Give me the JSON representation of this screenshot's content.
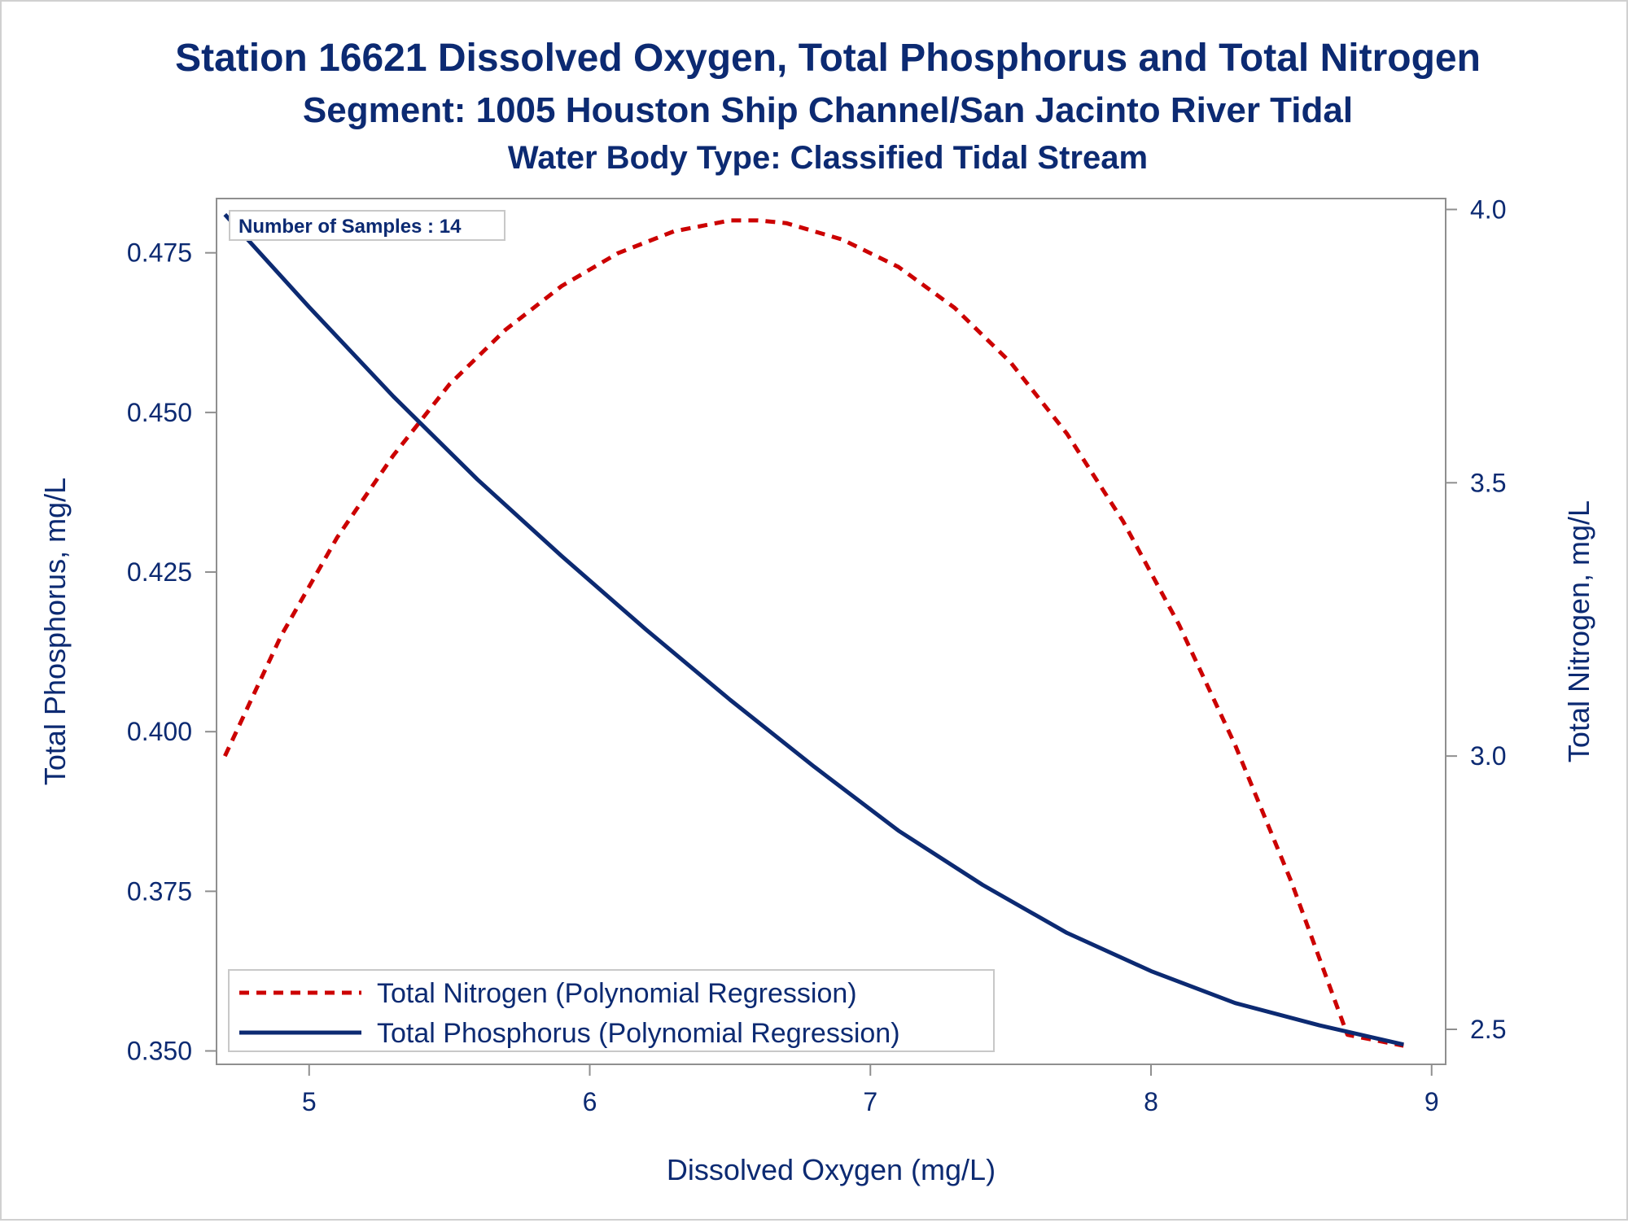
{
  "chart_data": {
    "type": "line",
    "title": "Station 16621  Dissolved Oxygen, Total Phosphorus and Total Nitrogen",
    "subtitle": "Segment: 1005  Houston Ship Channel/San Jacinto River Tidal",
    "subtitle2": "Water Body Type: Classified Tidal Stream",
    "annotation": "Number of Samples : 14",
    "xlabel": "Dissolved Oxygen (mg/L)",
    "ylabel": "Total Phosphorus, mg/L",
    "y2label": "Total Nitrogen, mg/L",
    "xlim": [
      4.67,
      9.05
    ],
    "ylim": [
      0.3479,
      0.4835
    ],
    "y2lim": [
      2.436,
      4.02
    ],
    "xticks": [
      5,
      6,
      7,
      8,
      9
    ],
    "yticks": [
      0.35,
      0.375,
      0.4,
      0.425,
      0.45,
      0.475
    ],
    "y2ticks": [
      2.5,
      3.0,
      3.5,
      4.0
    ],
    "xtick_labels": [
      "5",
      "6",
      "7",
      "8",
      "9"
    ],
    "ytick_labels": [
      "0.350",
      "0.375",
      "0.400",
      "0.425",
      "0.450",
      "0.475"
    ],
    "y2tick_labels": [
      "2.5",
      "3.0",
      "3.5",
      "4.0"
    ],
    "legend_position": "bottom-left",
    "grid": false,
    "series": [
      {
        "name": "Total Nitrogen (Polynomial Regression)",
        "axis": "right",
        "color": "#cc0000",
        "style": "dashed",
        "x": [
          4.7,
          4.9,
          5.1,
          5.3,
          5.5,
          5.7,
          5.9,
          6.1,
          6.3,
          6.5,
          6.6,
          6.7,
          6.9,
          7.1,
          7.3,
          7.5,
          7.7,
          7.9,
          8.1,
          8.3,
          8.5,
          8.7,
          8.9
        ],
        "values": [
          3.0,
          3.22,
          3.4,
          3.55,
          3.68,
          3.78,
          3.86,
          3.92,
          3.96,
          3.98,
          3.98,
          3.975,
          3.945,
          3.895,
          3.82,
          3.72,
          3.59,
          3.43,
          3.24,
          3.02,
          2.77,
          2.49,
          2.47
        ]
      },
      {
        "name": "Total Phosphorus (Polynomial Regression)",
        "axis": "left",
        "color": "#0c2a72",
        "style": "solid",
        "x": [
          4.7,
          5.0,
          5.3,
          5.6,
          5.9,
          6.2,
          6.5,
          6.8,
          7.1,
          7.4,
          7.7,
          8.0,
          8.3,
          8.6,
          8.9
        ],
        "values": [
          0.481,
          0.4665,
          0.4525,
          0.4395,
          0.4275,
          0.416,
          0.405,
          0.3945,
          0.3845,
          0.376,
          0.3685,
          0.3625,
          0.3575,
          0.354,
          0.351
        ]
      }
    ]
  }
}
